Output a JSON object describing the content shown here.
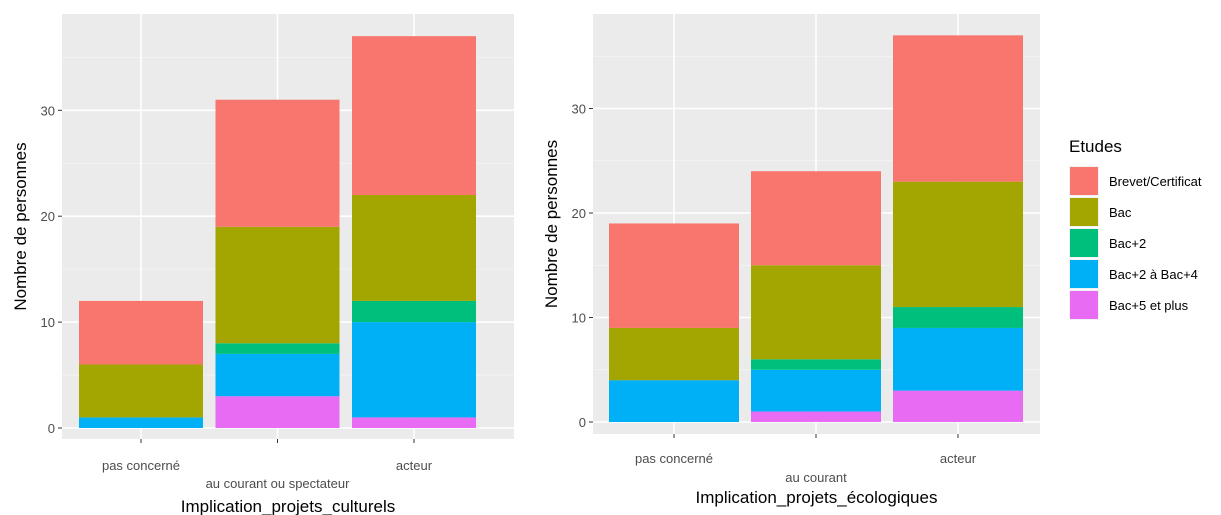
{
  "chart_data": [
    {
      "type": "bar",
      "stacked": true,
      "xlabel": "Implication_projets_culturels",
      "ylabel": "Nombre de personnes",
      "categories": [
        "pas concerné",
        "au courant ou spectateur",
        "acteur"
      ],
      "ylim": [
        0,
        37
      ],
      "yticks": [
        0,
        10,
        20,
        30
      ],
      "grid": true,
      "series": [
        {
          "name": "Bac+5 et plus",
          "values": [
            0,
            3,
            1
          ]
        },
        {
          "name": "Bac+2 à Bac+4",
          "values": [
            1,
            4,
            9
          ]
        },
        {
          "name": "Bac+2",
          "values": [
            0,
            1,
            2
          ]
        },
        {
          "name": "Bac",
          "values": [
            5,
            11,
            10
          ]
        },
        {
          "name": "Brevet/Certificat",
          "values": [
            6,
            12,
            15
          ]
        }
      ]
    },
    {
      "type": "bar",
      "stacked": true,
      "xlabel": "Implication_projets_écologiques",
      "ylabel": "Nombre de personnes",
      "categories": [
        "pas concerné",
        "au courant",
        "acteur"
      ],
      "ylim": [
        0,
        37
      ],
      "yticks": [
        0,
        10,
        20,
        30
      ],
      "grid": true,
      "series": [
        {
          "name": "Bac+5 et plus",
          "values": [
            0,
            1,
            3
          ]
        },
        {
          "name": "Bac+2 à Bac+4",
          "values": [
            4,
            4,
            6
          ]
        },
        {
          "name": "Bac+2",
          "values": [
            0,
            1,
            2
          ]
        },
        {
          "name": "Bac",
          "values": [
            5,
            9,
            12
          ]
        },
        {
          "name": "Brevet/Certificat",
          "values": [
            10,
            9,
            14
          ]
        }
      ]
    }
  ],
  "legend": {
    "title": "Etudes",
    "placement": "right",
    "items": [
      {
        "label": "Brevet/Certificat",
        "color": "#F8766D"
      },
      {
        "label": "Bac",
        "color": "#A3A500"
      },
      {
        "label": "Bac+2",
        "color": "#00BF7D"
      },
      {
        "label": "Bac+2 à Bac+4",
        "color": "#00B0F6"
      },
      {
        "label": "Bac+5 et plus",
        "color": "#E76BF3"
      }
    ]
  }
}
